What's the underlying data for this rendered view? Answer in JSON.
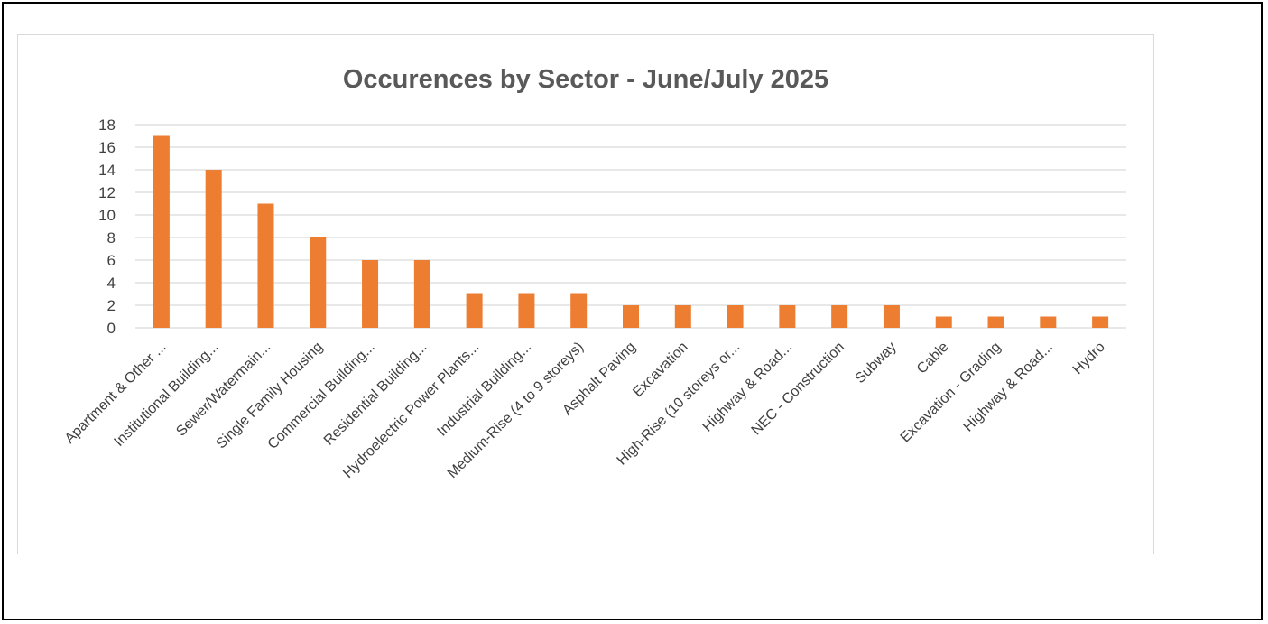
{
  "chart_data": {
    "type": "bar",
    "title": "Occurences by Sector - June/July 2025",
    "xlabel": "",
    "ylabel": "",
    "categories": [
      "Apartment & Other ...",
      "Institutional Building...",
      "Sewer/Watermain...",
      "Single Family Housing",
      "Commercial Building...",
      "Residential Building...",
      "Hydroelectric Power Plants...",
      "Industrial Building...",
      "Medium-Rise (4 to 9 storeys)",
      "Asphalt Paving",
      "Excavation",
      "High-Rise (10 storeys or...",
      "Highway & Road...",
      "NEC - Construction",
      "Subway",
      "Cable",
      "Excavation - Grading",
      "Highway & Road...",
      "Hydro"
    ],
    "values": [
      17,
      14,
      11,
      8,
      6,
      6,
      3,
      3,
      3,
      2,
      2,
      2,
      2,
      2,
      2,
      1,
      1,
      1,
      1
    ],
    "ylim": [
      0,
      18
    ],
    "yticks": [
      "0",
      "2",
      "4",
      "6",
      "8",
      "10",
      "12",
      "14",
      "16",
      "18"
    ],
    "grid": true,
    "legend": "none",
    "colors": {
      "bar": "#ed7d31",
      "grid": "#d9d9d9",
      "title": "#595959",
      "tick": "#404040"
    }
  }
}
